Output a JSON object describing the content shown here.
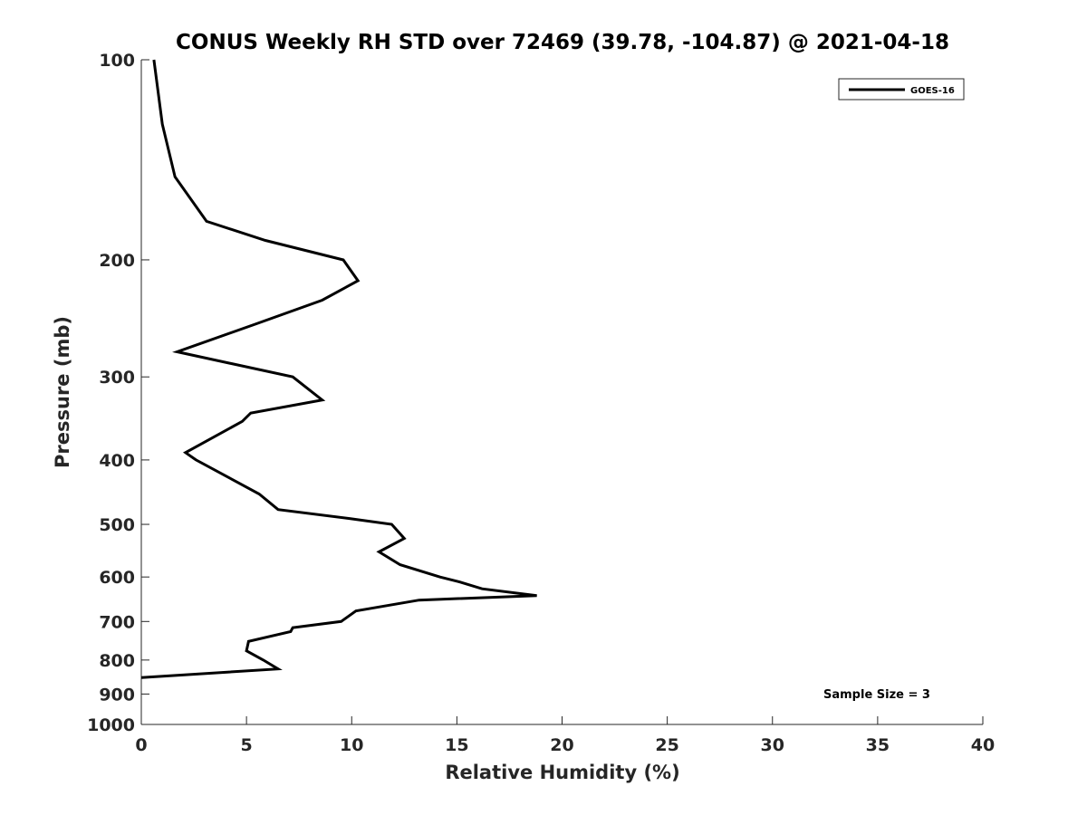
{
  "chart_data": {
    "type": "line",
    "title": "CONUS Weekly RH STD over 72469 (39.78, -104.87) @ 2021-04-18",
    "xlabel": "Relative Humidity (%)",
    "ylabel": "Pressure (mb)",
    "xlim": [
      0,
      40
    ],
    "ylim": [
      100,
      1000
    ],
    "y_scale": "log",
    "y_reversed": true,
    "x_ticks": [
      0,
      5,
      10,
      15,
      20,
      25,
      30,
      35,
      40
    ],
    "x_tick_labels": [
      "0",
      "5",
      "10",
      "15",
      "20",
      "25",
      "30",
      "35",
      "40"
    ],
    "y_ticks": [
      100,
      200,
      300,
      400,
      500,
      600,
      700,
      800,
      900,
      1000
    ],
    "y_tick_labels": [
      "100",
      "200",
      "300",
      "400",
      "500",
      "600",
      "700",
      "800",
      "900",
      "1000"
    ],
    "grid": false,
    "legend_position": "top-right",
    "series": [
      {
        "name": "GOES-16",
        "color": "#000000",
        "points": [
          {
            "rh": 0.6,
            "p": 100
          },
          {
            "rh": 1.0,
            "p": 125
          },
          {
            "rh": 1.6,
            "p": 150
          },
          {
            "rh": 3.1,
            "p": 175
          },
          {
            "rh": 5.9,
            "p": 187
          },
          {
            "rh": 9.6,
            "p": 200
          },
          {
            "rh": 10.3,
            "p": 215
          },
          {
            "rh": 8.6,
            "p": 230
          },
          {
            "rh": 5.4,
            "p": 250
          },
          {
            "rh": 1.7,
            "p": 275
          },
          {
            "rh": 7.2,
            "p": 300
          },
          {
            "rh": 8.6,
            "p": 325
          },
          {
            "rh": 5.2,
            "p": 340
          },
          {
            "rh": 4.8,
            "p": 350
          },
          {
            "rh": 2.1,
            "p": 390
          },
          {
            "rh": 2.6,
            "p": 400
          },
          {
            "rh": 5.6,
            "p": 450
          },
          {
            "rh": 6.5,
            "p": 475
          },
          {
            "rh": 9.9,
            "p": 490
          },
          {
            "rh": 11.9,
            "p": 500
          },
          {
            "rh": 12.5,
            "p": 525
          },
          {
            "rh": 11.3,
            "p": 550
          },
          {
            "rh": 12.3,
            "p": 575
          },
          {
            "rh": 14.2,
            "p": 600
          },
          {
            "rh": 15.1,
            "p": 610
          },
          {
            "rh": 16.2,
            "p": 625
          },
          {
            "rh": 18.8,
            "p": 640
          },
          {
            "rh": 13.2,
            "p": 650
          },
          {
            "rh": 10.2,
            "p": 675
          },
          {
            "rh": 9.5,
            "p": 700
          },
          {
            "rh": 7.2,
            "p": 715
          },
          {
            "rh": 7.1,
            "p": 725
          },
          {
            "rh": 5.1,
            "p": 750
          },
          {
            "rh": 5.0,
            "p": 775
          },
          {
            "rh": 5.8,
            "p": 800
          },
          {
            "rh": 6.5,
            "p": 825
          },
          {
            "rh": 0.0,
            "p": 850
          }
        ]
      }
    ],
    "annotation": "Sample Size = 3"
  }
}
